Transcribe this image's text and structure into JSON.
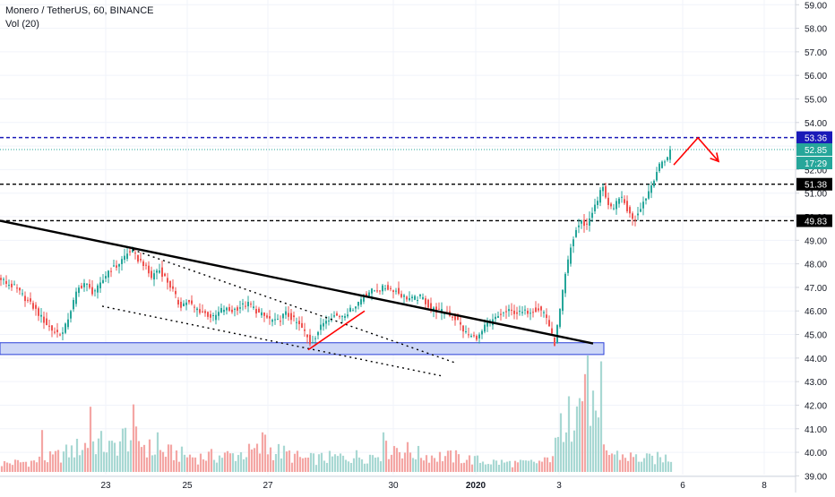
{
  "header": {
    "symbol_line": "Monero / TetherUS, 60, BINANCE",
    "volume_line": "Vol (20)"
  },
  "colors": {
    "up": "#26a69a",
    "down": "#ef5350",
    "up_vol": "#a8d8d3",
    "down_vol": "#f4a6a4",
    "resistance": "#1a1ab8",
    "support": "#000000",
    "last_price": "#26a69a",
    "arrow": "#ff0000",
    "zone_fill": "#cdd7f7",
    "zone_stroke": "#2a3fd9"
  },
  "chart_data": {
    "type": "candlestick",
    "title": "Monero / TetherUS, 60, BINANCE",
    "x_ticks": [
      "23",
      "25",
      "27",
      "30",
      "2020",
      "3",
      "6",
      "8"
    ],
    "y_ticks": [
      "59.00",
      "58.00",
      "57.00",
      "56.00",
      "55.00",
      "54.00",
      "53.00",
      "52.00",
      "51.00",
      "50.00",
      "49.00",
      "48.00",
      "47.00",
      "46.00",
      "45.00",
      "44.00",
      "43.00",
      "42.00",
      "41.00",
      "40.00",
      "39.00"
    ],
    "y_range": [
      38.9,
      59.2
    ],
    "x_range_bars": [
      0,
      884
    ],
    "grid": true,
    "last_price": 52.85,
    "countdown": "17:29",
    "levels": [
      {
        "price": 53.36,
        "label": "53.36",
        "style": "dashed",
        "role": "resistance"
      },
      {
        "price": 51.38,
        "label": "51.38",
        "style": "dashed",
        "role": "support"
      },
      {
        "price": 49.83,
        "label": "49.83",
        "style": "dashed",
        "role": "support"
      }
    ],
    "support_zone": {
      "low": 44.15,
      "high": 44.65
    },
    "price_path": [
      [
        0,
        47.4
      ],
      [
        8,
        47.2
      ],
      [
        18,
        47.0
      ],
      [
        28,
        46.6
      ],
      [
        40,
        46.1
      ],
      [
        52,
        45.5
      ],
      [
        62,
        45.1
      ],
      [
        72,
        45.05
      ],
      [
        80,
        46.0
      ],
      [
        88,
        46.9
      ],
      [
        96,
        47.2
      ],
      [
        104,
        46.8
      ],
      [
        112,
        47.0
      ],
      [
        122,
        47.7
      ],
      [
        132,
        47.9
      ],
      [
        140,
        48.3
      ],
      [
        148,
        48.6
      ],
      [
        155,
        48.2
      ],
      [
        162,
        48.0
      ],
      [
        170,
        47.4
      ],
      [
        178,
        47.8
      ],
      [
        186,
        47.4
      ],
      [
        194,
        46.9
      ],
      [
        202,
        46.2
      ],
      [
        210,
        46.4
      ],
      [
        220,
        46.1
      ],
      [
        230,
        45.9
      ],
      [
        240,
        45.7
      ],
      [
        250,
        46.1
      ],
      [
        260,
        46.0
      ],
      [
        270,
        46.2
      ],
      [
        280,
        46.3
      ],
      [
        290,
        45.9
      ],
      [
        300,
        45.7
      ],
      [
        310,
        45.5
      ],
      [
        320,
        45.9
      ],
      [
        330,
        45.6
      ],
      [
        340,
        45.2
      ],
      [
        348,
        44.6
      ],
      [
        356,
        45.1
      ],
      [
        364,
        45.6
      ],
      [
        372,
        45.8
      ],
      [
        382,
        45.8
      ],
      [
        392,
        46.0
      ],
      [
        402,
        46.4
      ],
      [
        412,
        46.8
      ],
      [
        422,
        46.9
      ],
      [
        432,
        47.0
      ],
      [
        442,
        46.9
      ],
      [
        452,
        46.6
      ],
      [
        462,
        46.5
      ],
      [
        472,
        46.6
      ],
      [
        482,
        46.1
      ],
      [
        492,
        46.0
      ],
      [
        502,
        45.9
      ],
      [
        512,
        45.6
      ],
      [
        520,
        45.1
      ],
      [
        528,
        44.9
      ],
      [
        536,
        44.9
      ],
      [
        544,
        45.4
      ],
      [
        552,
        45.6
      ],
      [
        562,
        45.9
      ],
      [
        572,
        46.0
      ],
      [
        582,
        45.9
      ],
      [
        592,
        46.0
      ],
      [
        602,
        46.1
      ],
      [
        610,
        45.9
      ],
      [
        616,
        45.2
      ],
      [
        620,
        44.5
      ],
      [
        626,
        45.9
      ],
      [
        632,
        47.4
      ],
      [
        638,
        48.6
      ],
      [
        644,
        49.4
      ],
      [
        650,
        49.8
      ],
      [
        656,
        49.6
      ],
      [
        662,
        50.2
      ],
      [
        668,
        50.6
      ],
      [
        674,
        51.4
      ],
      [
        680,
        50.5
      ],
      [
        686,
        50.2
      ],
      [
        692,
        50.9
      ],
      [
        698,
        50.6
      ],
      [
        704,
        50.1
      ],
      [
        710,
        49.9
      ],
      [
        716,
        50.4
      ],
      [
        722,
        50.8
      ],
      [
        728,
        51.3
      ],
      [
        734,
        51.9
      ],
      [
        740,
        52.3
      ],
      [
        746,
        52.5
      ],
      [
        750,
        52.85
      ]
    ],
    "volume_path": [
      [
        0,
        0.08
      ],
      [
        40,
        0.1
      ],
      [
        60,
        0.14
      ],
      [
        80,
        0.2
      ],
      [
        95,
        0.26
      ],
      [
        110,
        0.28
      ],
      [
        125,
        0.22
      ],
      [
        140,
        0.34
      ],
      [
        155,
        0.3
      ],
      [
        170,
        0.2
      ],
      [
        190,
        0.18
      ],
      [
        220,
        0.14
      ],
      [
        260,
        0.16
      ],
      [
        300,
        0.22
      ],
      [
        340,
        0.12
      ],
      [
        380,
        0.14
      ],
      [
        420,
        0.16
      ],
      [
        440,
        0.24
      ],
      [
        470,
        0.16
      ],
      [
        510,
        0.14
      ],
      [
        540,
        0.1
      ],
      [
        580,
        0.08
      ],
      [
        610,
        0.1
      ],
      [
        622,
        0.26
      ],
      [
        632,
        0.6
      ],
      [
        640,
        0.5
      ],
      [
        648,
        0.7
      ],
      [
        656,
        0.85
      ],
      [
        664,
        0.5
      ],
      [
        672,
        0.2
      ],
      [
        690,
        0.16
      ],
      [
        720,
        0.12
      ],
      [
        750,
        0.14
      ]
    ],
    "volume_spikes": [
      [
        46,
        0.36
      ],
      [
        100,
        0.56
      ],
      [
        150,
        0.58
      ],
      [
        175,
        0.34
      ],
      [
        292,
        0.34
      ],
      [
        296,
        0.32
      ],
      [
        428,
        0.34
      ],
      [
        636,
        0.65
      ],
      [
        654,
        0.84
      ],
      [
        670,
        0.95
      ]
    ],
    "annotations": [
      {
        "kind": "trendline",
        "color": "#000000",
        "from": [
          0,
          49.83
        ],
        "to": [
          662,
          44.62
        ],
        "width": 2.4
      },
      {
        "kind": "dotted-channel-top",
        "color": "#000000",
        "from": [
          148,
          48.6
        ],
        "to": [
          508,
          43.8
        ]
      },
      {
        "kind": "dotted-channel-bottom",
        "color": "#000000",
        "from": [
          114,
          46.2
        ],
        "to": [
          492,
          43.25
        ]
      },
      {
        "kind": "arrow-path",
        "color": "#ff0000",
        "points": [
          [
            344,
            44.35
          ],
          [
            407,
            46.0
          ]
        ]
      },
      {
        "kind": "arrow-path",
        "color": "#ff0000",
        "points": [
          [
            752,
            52.2
          ],
          [
            779,
            53.35
          ],
          [
            802,
            52.35
          ]
        ],
        "arrowhead": true
      }
    ]
  }
}
